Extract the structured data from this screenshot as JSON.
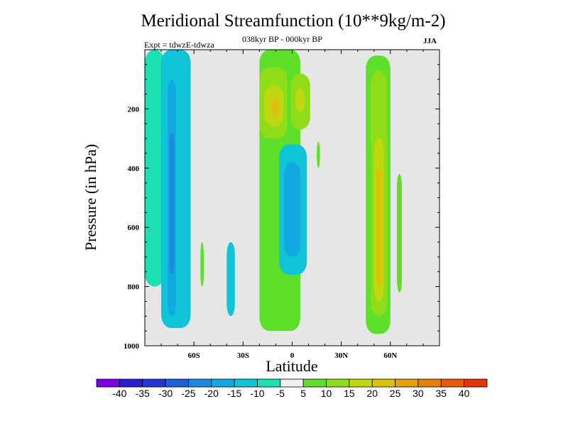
{
  "chart_data": {
    "type": "heatmap",
    "title": "Meridional Streamfunction (10**9kg/m-2)",
    "subtitle": "038kyr BP - 000kyr BP",
    "annotation_left": "Expt = tdwzE-tdwza",
    "annotation_right": "JJA",
    "xlabel": "Latitude",
    "ylabel": "Pressure (in hPa)",
    "xlim": [
      -90,
      90
    ],
    "ylim": [
      1000,
      0
    ],
    "x_ticks": [
      {
        "value": -60,
        "label": "60S"
      },
      {
        "value": -30,
        "label": "30S"
      },
      {
        "value": 0,
        "label": "0"
      },
      {
        "value": 30,
        "label": "30N"
      },
      {
        "value": 60,
        "label": "60N"
      }
    ],
    "y_ticks": [
      {
        "value": 200,
        "label": "200"
      },
      {
        "value": 400,
        "label": "400"
      },
      {
        "value": 600,
        "label": "600"
      },
      {
        "value": 800,
        "label": "800"
      },
      {
        "value": 1000,
        "label": "1000"
      }
    ],
    "missing_color": "#e6e6e6",
    "colorbar": {
      "labels": [
        "-40",
        "-35",
        "-30",
        "-25",
        "-20",
        "-15",
        "-10",
        "-5",
        "5",
        "10",
        "15",
        "20",
        "25",
        "30",
        "35",
        "40"
      ],
      "colors": [
        "#7a00e6",
        "#2b1ed6",
        "#2436d9",
        "#1f5fdb",
        "#1e88e0",
        "#12a9e3",
        "#0fc4d6",
        "#1ae0b2",
        "#f0f0f0",
        "#5ee02a",
        "#8fdc18",
        "#c0d810",
        "#dcc20b",
        "#e6a10a",
        "#e67f0a",
        "#e85a0a",
        "#e63208"
      ]
    },
    "regions": [
      {
        "lat": [
          -90,
          -78
        ],
        "p": [
          0,
          800
        ],
        "level": 7
      },
      {
        "lat": [
          -80,
          -62
        ],
        "p": [
          0,
          940
        ],
        "level": 6
      },
      {
        "lat": [
          -76,
          -71
        ],
        "p": [
          100,
          900
        ],
        "level": 5
      },
      {
        "lat": [
          -75,
          -72
        ],
        "p": [
          280,
          760
        ],
        "level": 4
      },
      {
        "lat": [
          -56,
          -54
        ],
        "p": [
          650,
          800
        ],
        "level": 9
      },
      {
        "lat": [
          -40,
          -35
        ],
        "p": [
          650,
          900
        ],
        "level": 6
      },
      {
        "lat": [
          -20,
          5
        ],
        "p": [
          0,
          950
        ],
        "level": 9
      },
      {
        "lat": [
          -20,
          -3
        ],
        "p": [
          60,
          300
        ],
        "level": 10
      },
      {
        "lat": [
          -17,
          -5
        ],
        "p": [
          120,
          260
        ],
        "level": 11
      },
      {
        "lat": [
          -13,
          -8
        ],
        "p": [
          160,
          230
        ],
        "level": 12
      },
      {
        "lat": [
          -1,
          11
        ],
        "p": [
          80,
          270
        ],
        "level": 10
      },
      {
        "lat": [
          2,
          8
        ],
        "p": [
          130,
          210
        ],
        "level": 11
      },
      {
        "lat": [
          -8,
          9
        ],
        "p": [
          320,
          760
        ],
        "level": 6
      },
      {
        "lat": [
          -5,
          5
        ],
        "p": [
          380,
          700
        ],
        "level": 5
      },
      {
        "lat": [
          15,
          17
        ],
        "p": [
          310,
          400
        ],
        "level": 9
      },
      {
        "lat": [
          45,
          60
        ],
        "p": [
          20,
          960
        ],
        "level": 9
      },
      {
        "lat": [
          48,
          58
        ],
        "p": [
          70,
          900
        ],
        "level": 10
      },
      {
        "lat": [
          50,
          56
        ],
        "p": [
          300,
          850
        ],
        "level": 11
      },
      {
        "lat": [
          51,
          55
        ],
        "p": [
          400,
          800
        ],
        "level": 12
      },
      {
        "lat": [
          64,
          67
        ],
        "p": [
          420,
          820
        ],
        "level": 9
      }
    ]
  }
}
